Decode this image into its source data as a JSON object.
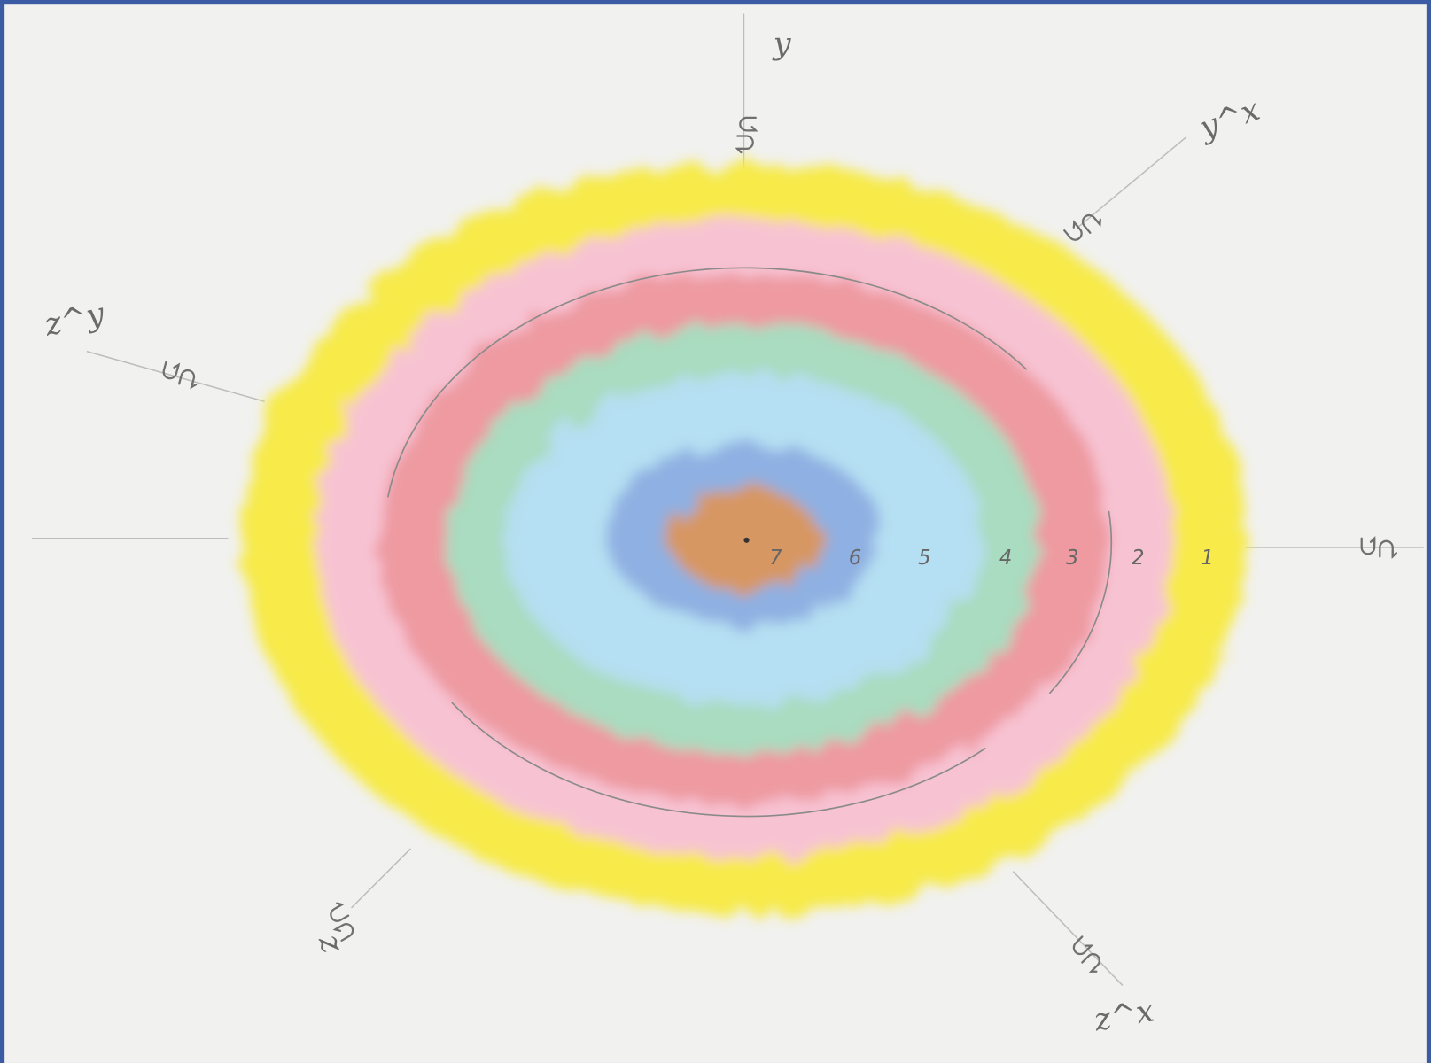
{
  "axes": {
    "y": "y",
    "y_x": "y^x",
    "z_y": "z^y",
    "z": "z",
    "z_x": "z^x"
  },
  "ring_labels": [
    "7",
    "6",
    "5",
    "4",
    "3",
    "2",
    "1"
  ]
}
